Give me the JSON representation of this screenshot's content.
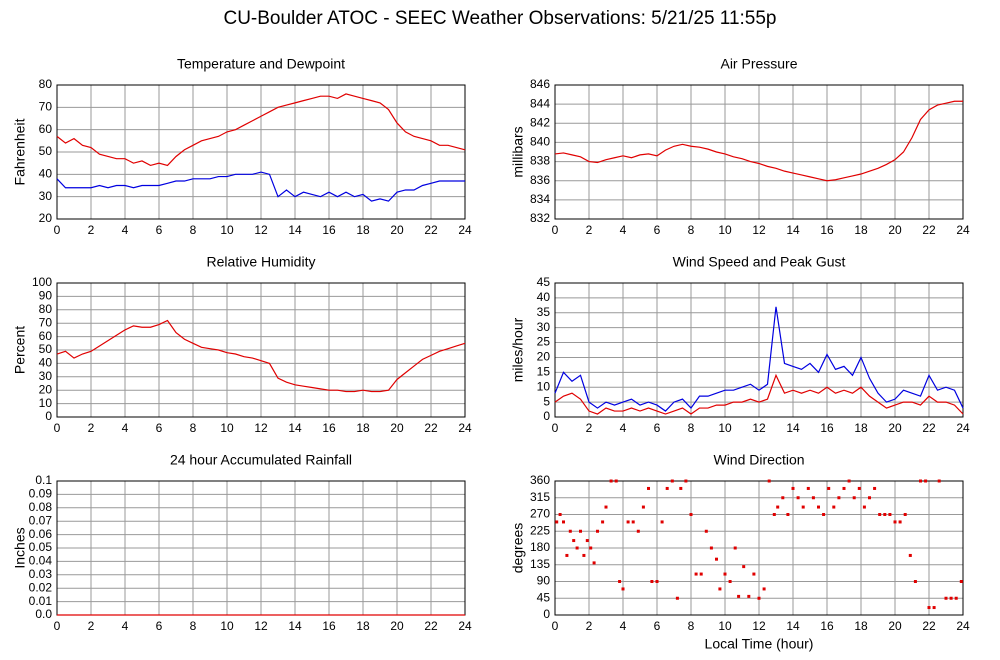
{
  "header": {
    "title": "CU-Boulder ATOC - SEEC Weather Observations: 5/21/25 11:55p"
  },
  "chart_data": [
    {
      "type": "line",
      "title": "Temperature and Dewpoint",
      "y_label": "Fahrenheit",
      "x": [
        0,
        0.5,
        1,
        1.5,
        2,
        2.5,
        3,
        3.5,
        4,
        4.5,
        5,
        5.5,
        6,
        6.5,
        7,
        7.5,
        8,
        8.5,
        9,
        9.5,
        10,
        10.5,
        11,
        11.5,
        12,
        12.5,
        13,
        13.5,
        14,
        14.5,
        15,
        15.5,
        16,
        16.5,
        17,
        17.5,
        18,
        18.5,
        19,
        19.5,
        20,
        20.5,
        21,
        21.5,
        22,
        22.5,
        23,
        23.5,
        24
      ],
      "series": [
        {
          "color": "#e00000",
          "values": [
            57,
            54,
            56,
            53,
            52,
            49,
            48,
            47,
            47,
            45,
            46,
            44,
            45,
            44,
            48,
            51,
            53,
            55,
            56,
            57,
            59,
            60,
            62,
            64,
            66,
            68,
            70,
            71,
            72,
            73,
            74,
            75,
            75,
            74,
            76,
            75,
            74,
            73,
            72,
            69,
            63,
            59,
            57,
            56,
            55,
            53,
            53,
            52,
            51
          ]
        },
        {
          "color": "#0000e0",
          "values": [
            38,
            34,
            34,
            34,
            34,
            35,
            34,
            35,
            35,
            34,
            35,
            35,
            35,
            36,
            37,
            37,
            38,
            38,
            38,
            39,
            39,
            40,
            40,
            40,
            41,
            40,
            30,
            33,
            30,
            32,
            31,
            30,
            32,
            30,
            32,
            30,
            31,
            28,
            29,
            28,
            32,
            33,
            33,
            35,
            36,
            37,
            37,
            37,
            37
          ]
        }
      ],
      "xlim": [
        0,
        24
      ],
      "xticks": [
        0,
        2,
        4,
        6,
        8,
        10,
        12,
        14,
        16,
        18,
        20,
        22,
        24
      ],
      "ylim": [
        20,
        80
      ],
      "yticks": [
        20,
        30,
        40,
        50,
        60,
        70,
        80
      ],
      "grid": true
    },
    {
      "type": "line",
      "title": "Air Pressure",
      "y_label": "millibars",
      "x": [
        0,
        0.5,
        1,
        1.5,
        2,
        2.5,
        3,
        3.5,
        4,
        4.5,
        5,
        5.5,
        6,
        6.5,
        7,
        7.5,
        8,
        8.5,
        9,
        9.5,
        10,
        10.5,
        11,
        11.5,
        12,
        12.5,
        13,
        13.5,
        14,
        14.5,
        15,
        15.5,
        16,
        16.5,
        17,
        17.5,
        18,
        18.5,
        19,
        19.5,
        20,
        20.5,
        21,
        21.5,
        22,
        22.5,
        23,
        23.5,
        24
      ],
      "series": [
        {
          "color": "#e00000",
          "values": [
            838.8,
            838.9,
            838.7,
            838.5,
            838.0,
            837.9,
            838.2,
            838.4,
            838.6,
            838.4,
            838.7,
            838.8,
            838.6,
            839.2,
            839.6,
            839.8,
            839.6,
            839.5,
            839.3,
            839.0,
            838.8,
            838.5,
            838.3,
            838.0,
            837.8,
            837.5,
            837.3,
            837.0,
            836.8,
            836.6,
            836.4,
            836.2,
            836.0,
            836.1,
            836.3,
            836.5,
            836.7,
            837.0,
            837.3,
            837.7,
            838.2,
            839.0,
            840.5,
            842.4,
            843.4,
            843.9,
            844.1,
            844.3,
            844.3
          ]
        }
      ],
      "xlim": [
        0,
        24
      ],
      "xticks": [
        0,
        2,
        4,
        6,
        8,
        10,
        12,
        14,
        16,
        18,
        20,
        22,
        24
      ],
      "ylim": [
        832,
        846
      ],
      "yticks": [
        832,
        834,
        836,
        838,
        840,
        842,
        844,
        846
      ],
      "grid": true
    },
    {
      "type": "line",
      "title": "Relative Humidity",
      "y_label": "Percent",
      "x": [
        0,
        0.5,
        1,
        1.5,
        2,
        2.5,
        3,
        3.5,
        4,
        4.5,
        5,
        5.5,
        6,
        6.5,
        7,
        7.5,
        8,
        8.5,
        9,
        9.5,
        10,
        10.5,
        11,
        11.5,
        12,
        12.5,
        13,
        13.5,
        14,
        14.5,
        15,
        15.5,
        16,
        16.5,
        17,
        17.5,
        18,
        18.5,
        19,
        19.5,
        20,
        20.5,
        21,
        21.5,
        22,
        22.5,
        23,
        23.5,
        24
      ],
      "series": [
        {
          "color": "#e00000",
          "values": [
            47,
            49,
            44,
            47,
            49,
            53,
            57,
            61,
            65,
            68,
            67,
            67,
            69,
            72,
            63,
            58,
            55,
            52,
            51,
            50,
            48,
            47,
            45,
            44,
            42,
            40,
            29,
            26,
            24,
            23,
            22,
            21,
            20,
            20,
            19,
            19,
            20,
            19,
            19,
            20,
            28,
            33,
            38,
            43,
            46,
            49,
            51,
            53,
            55
          ]
        }
      ],
      "xlim": [
        0,
        24
      ],
      "xticks": [
        0,
        2,
        4,
        6,
        8,
        10,
        12,
        14,
        16,
        18,
        20,
        22,
        24
      ],
      "ylim": [
        0,
        100
      ],
      "yticks": [
        0,
        10,
        20,
        30,
        40,
        50,
        60,
        70,
        80,
        90,
        100
      ],
      "grid": true
    },
    {
      "type": "line",
      "title": "Wind Speed and Peak Gust",
      "y_label": "miles/hour",
      "x": [
        0,
        0.5,
        1,
        1.5,
        2,
        2.5,
        3,
        3.5,
        4,
        4.5,
        5,
        5.5,
        6,
        6.5,
        7,
        7.5,
        8,
        8.5,
        9,
        9.5,
        10,
        10.5,
        11,
        11.5,
        12,
        12.5,
        13,
        13.5,
        14,
        14.5,
        15,
        15.5,
        16,
        16.5,
        17,
        17.5,
        18,
        18.5,
        19,
        19.5,
        20,
        20.5,
        21,
        21.5,
        22,
        22.5,
        23,
        23.5,
        24
      ],
      "series": [
        {
          "color": "#0000e0",
          "values": [
            8,
            15,
            12,
            14,
            5,
            3,
            5,
            4,
            5,
            6,
            4,
            5,
            4,
            2,
            5,
            6,
            3,
            7,
            7,
            8,
            9,
            9,
            10,
            11,
            9,
            11,
            37,
            18,
            17,
            16,
            18,
            15,
            21,
            16,
            17,
            14,
            20,
            13,
            8,
            5,
            6,
            9,
            8,
            7,
            14,
            9,
            10,
            9,
            3
          ]
        },
        {
          "color": "#e00000",
          "values": [
            5,
            7,
            8,
            6,
            2,
            1,
            3,
            2,
            2,
            3,
            2,
            3,
            2,
            1,
            2,
            3,
            1,
            3,
            3,
            4,
            4,
            5,
            5,
            6,
            5,
            6,
            14,
            8,
            9,
            8,
            9,
            8,
            10,
            8,
            9,
            8,
            10,
            7,
            5,
            3,
            4,
            5,
            5,
            4,
            7,
            5,
            5,
            4,
            1
          ]
        }
      ],
      "xlim": [
        0,
        24
      ],
      "xticks": [
        0,
        2,
        4,
        6,
        8,
        10,
        12,
        14,
        16,
        18,
        20,
        22,
        24
      ],
      "ylim": [
        0,
        45
      ],
      "yticks": [
        0,
        5,
        10,
        15,
        20,
        25,
        30,
        35,
        40,
        45
      ],
      "grid": true
    },
    {
      "type": "line",
      "title": "24 hour Accumulated Rainfall",
      "y_label": "Inches",
      "x": [
        0,
        24
      ],
      "series": [
        {
          "color": "#e00000",
          "values": [
            0,
            0
          ]
        }
      ],
      "xlim": [
        0,
        24
      ],
      "xticks": [
        0,
        2,
        4,
        6,
        8,
        10,
        12,
        14,
        16,
        18,
        20,
        22,
        24
      ],
      "ylim": [
        0,
        0.1
      ],
      "yticks": [
        {
          "value": 0,
          "label": "0.0"
        },
        0.01,
        0.02,
        0.03,
        0.04,
        0.05,
        0.06,
        0.07,
        0.08,
        0.09,
        0.1
      ],
      "grid": true
    },
    {
      "type": "scatter",
      "title": "Wind Direction",
      "y_label": "degrees",
      "x_label": "Local Time (hour)",
      "x": [
        0.1,
        0.3,
        0.5,
        0.7,
        0.9,
        1.1,
        1.3,
        1.5,
        1.7,
        1.9,
        2.1,
        2.3,
        2.5,
        2.8,
        3.0,
        3.3,
        3.6,
        3.8,
        4.0,
        4.3,
        4.6,
        4.9,
        5.2,
        5.5,
        5.7,
        6.0,
        6.3,
        6.6,
        6.9,
        7.2,
        7.4,
        7.7,
        8.0,
        8.3,
        8.6,
        8.9,
        9.2,
        9.5,
        9.7,
        10.0,
        10.3,
        10.6,
        10.8,
        11.1,
        11.4,
        11.7,
        12.0,
        12.3,
        12.6,
        12.9,
        13.1,
        13.4,
        13.7,
        14.0,
        14.3,
        14.6,
        14.9,
        15.2,
        15.5,
        15.8,
        16.1,
        16.4,
        16.7,
        17.0,
        17.3,
        17.6,
        17.9,
        18.2,
        18.5,
        18.8,
        19.1,
        19.4,
        19.7,
        20.0,
        20.3,
        20.6,
        20.9,
        21.2,
        21.5,
        21.8,
        22.0,
        22.3,
        22.6,
        23.0,
        23.3,
        23.6,
        23.9
      ],
      "series": [
        {
          "color": "#e00000",
          "values": [
            250,
            270,
            250,
            160,
            225,
            200,
            180,
            225,
            160,
            200,
            180,
            140,
            225,
            250,
            290,
            360,
            360,
            90,
            70,
            250,
            250,
            225,
            290,
            340,
            90,
            90,
            250,
            340,
            360,
            45,
            340,
            360,
            270,
            110,
            110,
            225,
            180,
            150,
            70,
            110,
            90,
            180,
            50,
            130,
            50,
            110,
            45,
            70,
            360,
            270,
            290,
            315,
            270,
            340,
            315,
            290,
            340,
            315,
            290,
            270,
            340,
            290,
            315,
            340,
            360,
            315,
            340,
            290,
            315,
            340,
            270,
            270,
            270,
            250,
            250,
            270,
            160,
            90,
            360,
            360,
            20,
            20,
            360,
            45,
            45,
            45,
            90
          ]
        }
      ],
      "xlim": [
        0,
        24
      ],
      "xticks": [
        0,
        2,
        4,
        6,
        8,
        10,
        12,
        14,
        16,
        18,
        20,
        22,
        24
      ],
      "ylim": [
        0,
        360
      ],
      "yticks": [
        0,
        45,
        90,
        135,
        180,
        225,
        270,
        315,
        360
      ],
      "grid": true
    }
  ]
}
